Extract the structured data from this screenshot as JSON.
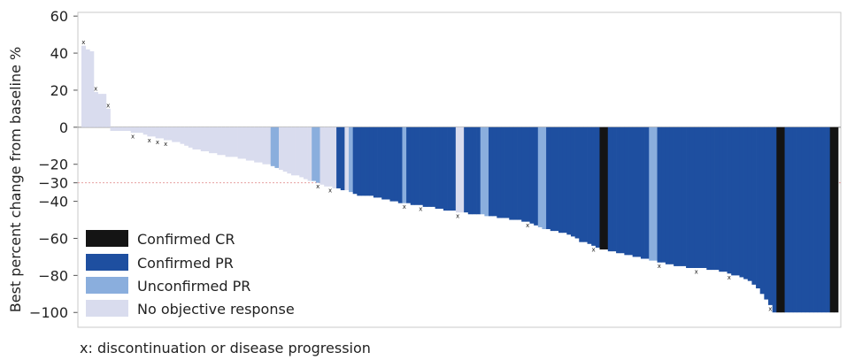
{
  "chart_data": {
    "type": "bar",
    "ylabel": "Best percent change from baseline %",
    "xlabel": "",
    "ylim": [
      -108,
      62
    ],
    "yticks": [
      60,
      40,
      20,
      0,
      -20,
      -30,
      -40,
      -60,
      -80,
      -100
    ],
    "yticklabels": [
      "60",
      "40",
      "20",
      "0",
      "−20",
      "−30",
      "−40",
      "−60",
      "−80",
      "−100"
    ],
    "reference_line": {
      "y": -30,
      "style": "dotted",
      "color": "#e8a0a0"
    },
    "grid": false,
    "legend_position": "bottom-left",
    "legend": [
      {
        "key": "CCR",
        "label": "Confirmed CR",
        "color": "#141414"
      },
      {
        "key": "CPR",
        "label": "Confirmed PR",
        "color": "#1e4fa0"
      },
      {
        "key": "UPR",
        "label": "Unconfirmed PR",
        "color": "#8aaedd"
      },
      {
        "key": "NOR",
        "label": "No objective response",
        "color": "#d9dcee"
      }
    ],
    "footnote": "x: discontinuation or disease progression",
    "marker_symbol": "x",
    "values": [
      44,
      42,
      41,
      19,
      18,
      18,
      10,
      -2,
      -2,
      -2,
      -2,
      -2,
      -3,
      -3,
      -3,
      -4,
      -5,
      -5,
      -6,
      -6,
      -7,
      -7,
      -8,
      -8,
      -9,
      -10,
      -11,
      -12,
      -12,
      -13,
      -13,
      -14,
      -14,
      -15,
      -15,
      -16,
      -16,
      -16,
      -17,
      -17,
      -18,
      -18,
      -19,
      -19,
      -20,
      -20,
      -21,
      -22,
      -23,
      -24,
      -25,
      -26,
      -26,
      -27,
      -28,
      -29,
      -29,
      -30,
      -31,
      -32,
      -32,
      -33,
      -33,
      -34,
      -34,
      -35,
      -36,
      -37,
      -37,
      -37,
      -37,
      -38,
      -38,
      -39,
      -39,
      -40,
      -40,
      -41,
      -41,
      -41,
      -42,
      -42,
      -42,
      -43,
      -43,
      -43,
      -44,
      -44,
      -45,
      -45,
      -45,
      -46,
      -46,
      -46,
      -47,
      -47,
      -47,
      -47,
      -48,
      -48,
      -48,
      -49,
      -49,
      -49,
      -50,
      -50,
      -50,
      -51,
      -51,
      -52,
      -53,
      -54,
      -55,
      -55,
      -56,
      -56,
      -57,
      -57,
      -58,
      -59,
      -60,
      -62,
      -62,
      -63,
      -64,
      -65,
      -66,
      -66,
      -67,
      -67,
      -68,
      -68,
      -69,
      -69,
      -70,
      -70,
      -71,
      -71,
      -72,
      -72,
      -73,
      -73,
      -74,
      -74,
      -75,
      -75,
      -75,
      -76,
      -76,
      -76,
      -76,
      -76,
      -77,
      -77,
      -77,
      -78,
      -78,
      -79,
      -80,
      -80,
      -81,
      -82,
      -83,
      -85,
      -87,
      -90,
      -93,
      -96,
      -100,
      -100,
      -100,
      -100,
      -100,
      -100,
      -100,
      -100,
      -100,
      -100,
      -100,
      -100,
      -100,
      -100,
      -100,
      -100
    ],
    "categories_color": [
      "NOR",
      "NOR",
      "NOR",
      "NOR",
      "NOR",
      "NOR",
      "NOR",
      "NOR",
      "NOR",
      "NOR",
      "NOR",
      "NOR",
      "NOR",
      "NOR",
      "NOR",
      "NOR",
      "NOR",
      "NOR",
      "NOR",
      "NOR",
      "NOR",
      "NOR",
      "NOR",
      "NOR",
      "NOR",
      "NOR",
      "NOR",
      "NOR",
      "NOR",
      "NOR",
      "NOR",
      "NOR",
      "NOR",
      "NOR",
      "NOR",
      "NOR",
      "NOR",
      "NOR",
      "NOR",
      "NOR",
      "NOR",
      "NOR",
      "NOR",
      "NOR",
      "NOR",
      "NOR",
      "UPR",
      "UPR",
      "NOR",
      "NOR",
      "NOR",
      "NOR",
      "NOR",
      "NOR",
      "NOR",
      "NOR",
      "UPR",
      "UPR",
      "NOR",
      "NOR",
      "NOR",
      "NOR",
      "CPR",
      "CPR",
      "NOR",
      "UPR",
      "CPR",
      "CPR",
      "CPR",
      "CPR",
      "CPR",
      "CPR",
      "CPR",
      "CPR",
      "CPR",
      "CPR",
      "CPR",
      "CPR",
      "UPR",
      "CPR",
      "CPR",
      "CPR",
      "CPR",
      "CPR",
      "CPR",
      "CPR",
      "CPR",
      "CPR",
      "CPR",
      "CPR",
      "CPR",
      "NOR",
      "NOR",
      "CPR",
      "CPR",
      "CPR",
      "CPR",
      "UPR",
      "UPR",
      "CPR",
      "CPR",
      "CPR",
      "CPR",
      "CPR",
      "CPR",
      "CPR",
      "CPR",
      "CPR",
      "CPR",
      "CPR",
      "CPR",
      "UPR",
      "UPR",
      "CPR",
      "CPR",
      "CPR",
      "CPR",
      "CPR",
      "CPR",
      "CPR",
      "CPR",
      "CPR",
      "CPR",
      "CPR",
      "CPR",
      "CPR",
      "CCR",
      "CCR",
      "CPR",
      "CPR",
      "CPR",
      "CPR",
      "CPR",
      "CPR",
      "CPR",
      "CPR",
      "CPR",
      "CPR",
      "UPR",
      "UPR",
      "CPR",
      "CPR",
      "CPR",
      "CPR",
      "CPR",
      "CPR",
      "CPR",
      "CPR",
      "CPR",
      "CPR",
      "CPR",
      "CPR",
      "CPR",
      "CPR",
      "CPR",
      "CPR",
      "CPR",
      "CPR",
      "CPR",
      "CPR",
      "CPR",
      "CPR",
      "CPR",
      "CPR",
      "CPR",
      "CPR",
      "CPR",
      "CPR",
      "CPR",
      "CCR",
      "CCR",
      "CPR",
      "CPR",
      "CPR",
      "CPR",
      "CPR",
      "CPR",
      "CPR",
      "CPR",
      "CPR",
      "CPR",
      "CPR",
      "CCR",
      "CCR",
      "CPR",
      "CPR",
      "CPR",
      "CPR",
      "NOR",
      "NOR"
    ],
    "marked_bars": [
      0,
      3,
      6,
      12,
      16,
      18,
      20,
      57,
      60,
      78,
      82,
      91,
      108,
      124,
      140,
      149,
      157,
      167
    ]
  }
}
